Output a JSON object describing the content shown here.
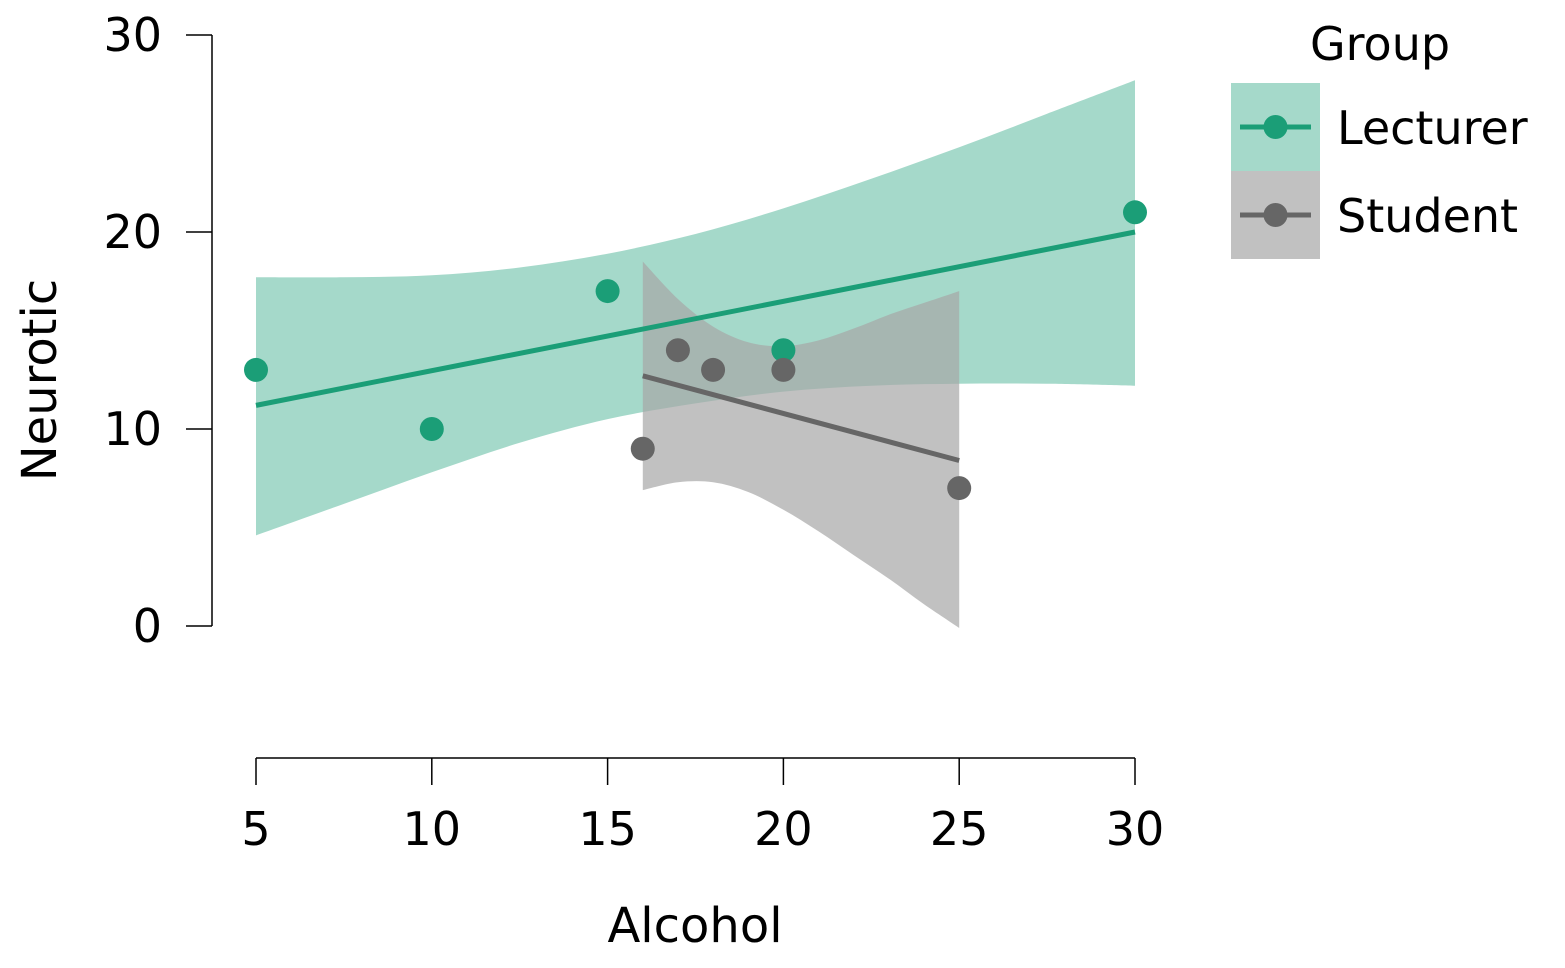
{
  "chart_data": {
    "type": "scatter",
    "xlabel": "Alcohol",
    "ylabel": "Neurotic",
    "xlim": [
      5,
      30
    ],
    "ylim": [
      0,
      30
    ],
    "x_ticks": [
      "5",
      "10",
      "15",
      "20",
      "25",
      "30"
    ],
    "y_ticks": [
      "0",
      "10",
      "20",
      "30"
    ],
    "legend": {
      "title": "Group",
      "placement": "right"
    },
    "series": [
      {
        "name": "Lecturer",
        "color": "#1b9e77",
        "band_color": "#a5d9ca",
        "points": [
          {
            "x": 5,
            "y": 13
          },
          {
            "x": 10,
            "y": 10
          },
          {
            "x": 15,
            "y": 17
          },
          {
            "x": 20,
            "y": 14
          },
          {
            "x": 30,
            "y": 21
          }
        ],
        "fit": {
          "x": [
            5,
            30
          ],
          "y": [
            11.2,
            20.0
          ]
        },
        "band": {
          "x": [
            5,
            7.5,
            10,
            12.5,
            15,
            17.5,
            20,
            22.5,
            25,
            27.5,
            30
          ],
          "lower": [
            4.6,
            6.2,
            7.8,
            9.3,
            10.5,
            11.3,
            11.9,
            12.2,
            12.3,
            12.3,
            12.2
          ],
          "upper": [
            17.7,
            17.7,
            17.8,
            18.2,
            18.9,
            19.9,
            21.2,
            22.7,
            24.3,
            26.0,
            27.7
          ]
        }
      },
      {
        "name": "Student",
        "color": "#666666",
        "band_color": "#a6a6a6",
        "points": [
          {
            "x": 16,
            "y": 9
          },
          {
            "x": 17,
            "y": 14
          },
          {
            "x": 18,
            "y": 13
          },
          {
            "x": 20,
            "y": 13
          },
          {
            "x": 25,
            "y": 7
          }
        ],
        "fit": {
          "x": [
            16,
            25
          ],
          "y": [
            12.7,
            8.4
          ]
        },
        "band": {
          "x": [
            16,
            17,
            18,
            19,
            20,
            21,
            22,
            23,
            24,
            25
          ],
          "lower": [
            6.9,
            7.3,
            7.3,
            6.8,
            5.9,
            4.8,
            3.6,
            2.4,
            1.1,
            -0.1
          ],
          "upper": [
            18.5,
            16.6,
            15.2,
            14.4,
            14.2,
            14.5,
            15.1,
            15.8,
            16.4,
            17.0
          ]
        }
      }
    ]
  }
}
